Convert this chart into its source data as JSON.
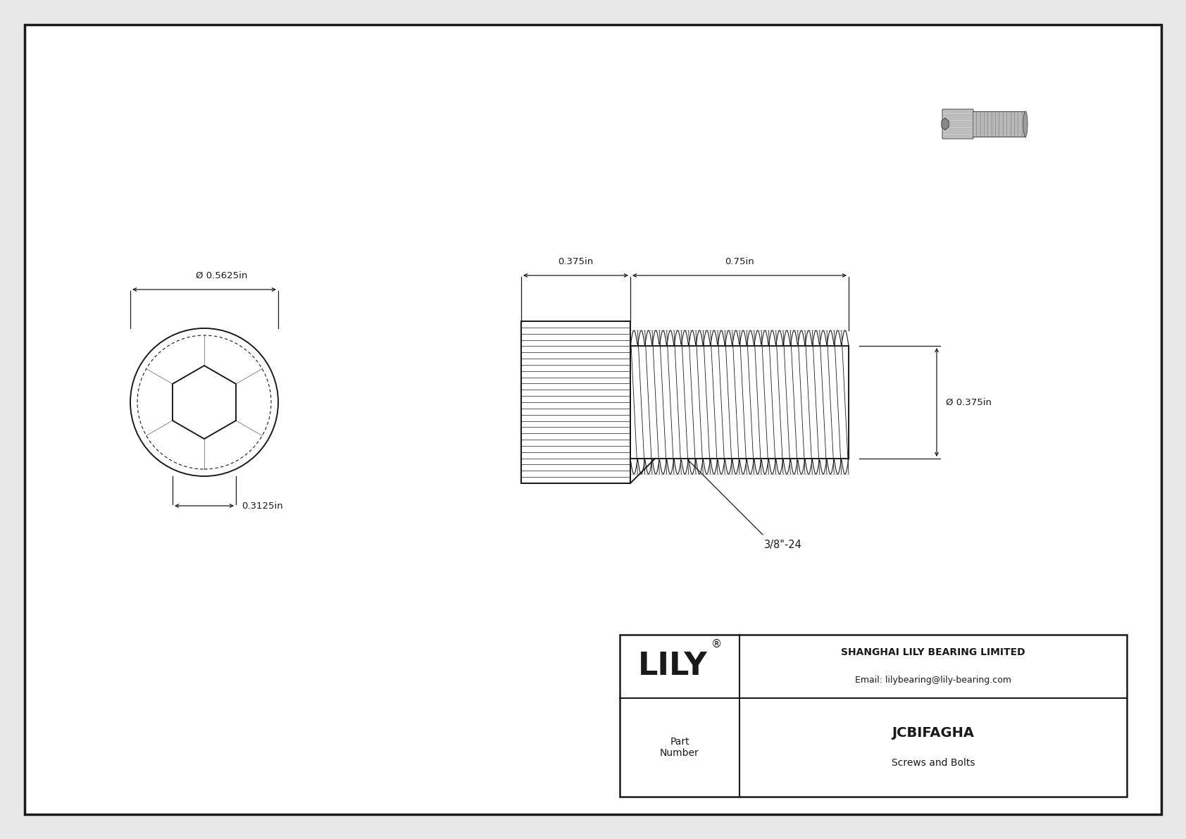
{
  "bg_color": "#e8e8e8",
  "drawing_bg": "#ffffff",
  "line_color": "#1a1a1a",
  "title": "JCBIFAGHA",
  "subtitle": "Screws and Bolts",
  "company": "SHANGHAI LILY BEARING LIMITED",
  "email": "Email: lilybearing@lily-bearing.com",
  "part_label": "Part\nNumber",
  "dim_head_diameter": "Ø 0.5625in",
  "dim_head_height": "0.3125in",
  "dim_shank_length": "0.375in",
  "dim_thread_length": "0.75in",
  "dim_thread_diameter": "Ø 0.375in",
  "thread_label": "3/8\"-24"
}
